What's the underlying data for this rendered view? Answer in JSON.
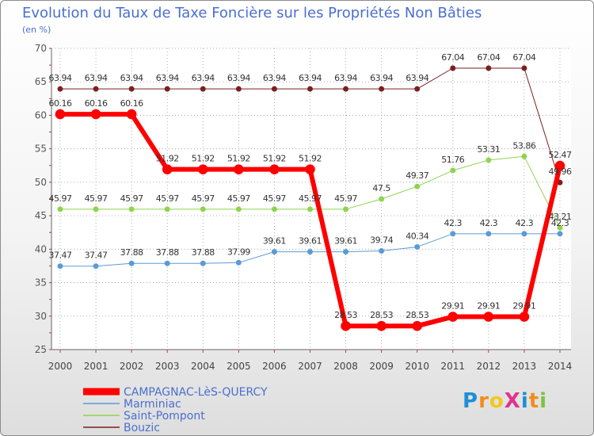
{
  "title": "Evolution du Taux de Taxe Foncière sur les Propriétés Non Bâties",
  "subtitle": "(en %)",
  "logo": {
    "text": "ProXiti",
    "letters": [
      {
        "ch": "P",
        "color": "#1e8fd6"
      },
      {
        "ch": "r",
        "color": "#f28c1e"
      },
      {
        "ch": "o",
        "color": "#f2c81e"
      },
      {
        "ch": "X",
        "color": "#e0338a"
      },
      {
        "ch": "i",
        "color": "#1e8fd6"
      },
      {
        "ch": "t",
        "color": "#f28c1e"
      },
      {
        "ch": "i",
        "color": "#7cc242"
      }
    ]
  },
  "chart_data": {
    "type": "line",
    "title": "Evolution du Taux de Taxe Foncière sur les Propriétés Non Bâties",
    "ylabel": "(en %)",
    "xlabel": "",
    "ylim": [
      25,
      70
    ],
    "yticks": [
      25,
      30,
      35,
      40,
      45,
      50,
      55,
      60,
      65,
      70
    ],
    "categories": [
      "2000",
      "2001",
      "2002",
      "2003",
      "2004",
      "2005",
      "2006",
      "2007",
      "2008",
      "2009",
      "2010",
      "2011",
      "2012",
      "2013",
      "2014"
    ],
    "legend_position": "bottom-left",
    "series": [
      {
        "name": "Bouzic",
        "color": "#7a2020",
        "width": 1,
        "labels": [
          "63.94",
          "63.94",
          "63.94",
          "63.94",
          "63.94",
          "63.94",
          "63.94",
          "63.94",
          "63.94",
          "63.94",
          "63.94",
          "67.04",
          "67.04",
          "67.04",
          "49.96"
        ],
        "values": [
          63.94,
          63.94,
          63.94,
          63.94,
          63.94,
          63.94,
          63.94,
          63.94,
          63.94,
          63.94,
          63.94,
          67.04,
          67.04,
          67.04,
          49.96
        ]
      },
      {
        "name": "Saint-Pompont",
        "color": "#8ed44e",
        "width": 1,
        "labels": [
          "45.97",
          "45.97",
          "45.97",
          "45.97",
          "45.97",
          "45.97",
          "45.97",
          "45.97",
          "45.97",
          "47.5",
          "49.37",
          "51.76",
          "53.31",
          "53.86",
          "43.21"
        ],
        "values": [
          45.97,
          45.97,
          45.97,
          45.97,
          45.97,
          45.97,
          45.97,
          45.97,
          45.97,
          47.5,
          49.37,
          51.76,
          53.31,
          53.86,
          43.21
        ]
      },
      {
        "name": "Marminiac",
        "color": "#5b9bd5",
        "width": 1,
        "labels": [
          "37.47",
          "37.47",
          "37.88",
          "37.88",
          "37.88",
          "37.99",
          "39.61",
          "39.61",
          "39.61",
          "39.74",
          "40.34",
          "42.3",
          "42.3",
          "42.3",
          "42.3"
        ],
        "values": [
          37.47,
          37.47,
          37.88,
          37.88,
          37.88,
          37.99,
          39.61,
          39.61,
          39.61,
          39.74,
          40.34,
          42.3,
          42.3,
          42.3,
          42.3
        ]
      },
      {
        "name": "CAMPAGNAC-LèS-QUERCY",
        "color": "#ff0000",
        "width": 6,
        "labels": [
          "60.16",
          "60.16",
          "60.16",
          "51.92",
          "51.92",
          "51.92",
          "51.92",
          "51.92",
          "28.53",
          "28.53",
          "28.53",
          "29.91",
          "29.91",
          "29.91",
          "52.47"
        ],
        "values": [
          60.16,
          60.16,
          60.16,
          51.92,
          51.92,
          51.92,
          51.92,
          51.92,
          28.53,
          28.53,
          28.53,
          29.91,
          29.91,
          29.91,
          52.47
        ]
      }
    ],
    "legend_order": [
      "CAMPAGNAC-LèS-QUERCY",
      "Marminiac",
      "Saint-Pompont",
      "Bouzic"
    ]
  }
}
